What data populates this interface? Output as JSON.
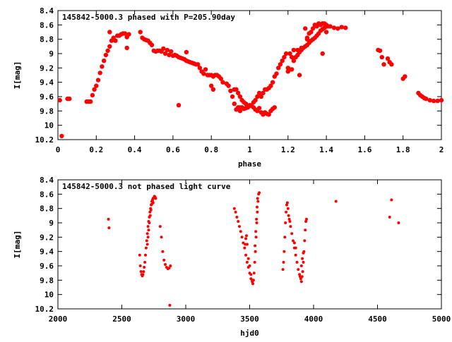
{
  "colors": {
    "marker": "#ff0000",
    "axis": "#000000",
    "background": "#ffffff"
  },
  "chart_data": [
    {
      "type": "scatter",
      "title": "145842-5000.3 phased with P=205.90day",
      "xlabel": "phase",
      "ylabel": "I[mag]",
      "xlim": [
        0,
        2
      ],
      "ylim": [
        10.2,
        8.4
      ],
      "y_inverted": true,
      "grid": false,
      "legend": "none",
      "marker": "filled-circle",
      "xticks": [
        "0",
        "0.2",
        "0.4",
        "0.6",
        "0.8",
        "1",
        "1.2",
        "1.4",
        "1.6",
        "1.8",
        "2"
      ],
      "yticks": [
        "8.4",
        "8.6",
        "8.8",
        "9",
        "9.2",
        "9.4",
        "9.6",
        "9.8",
        "10",
        "10.2"
      ],
      "points": [
        [
          0.01,
          9.65
        ],
        [
          0.02,
          10.15
        ],
        [
          0.05,
          9.63
        ],
        [
          0.06,
          9.63
        ],
        [
          0.15,
          9.67
        ],
        [
          0.16,
          9.67
        ],
        [
          0.17,
          9.67
        ],
        [
          0.18,
          9.58
        ],
        [
          0.19,
          9.5
        ],
        [
          0.2,
          9.45
        ],
        [
          0.21,
          9.37
        ],
        [
          0.22,
          9.27
        ],
        [
          0.23,
          9.18
        ],
        [
          0.24,
          9.1
        ],
        [
          0.25,
          9.02
        ],
        [
          0.26,
          8.96
        ],
        [
          0.27,
          8.9
        ],
        [
          0.28,
          8.82
        ],
        [
          0.29,
          8.78
        ],
        [
          0.3,
          8.82
        ],
        [
          0.31,
          8.75
        ],
        [
          0.32,
          8.75
        ],
        [
          0.33,
          8.73
        ],
        [
          0.34,
          8.72
        ],
        [
          0.35,
          8.72
        ],
        [
          0.36,
          8.77
        ],
        [
          0.37,
          8.73
        ],
        [
          0.36,
          8.92
        ],
        [
          0.27,
          8.7
        ],
        [
          0.43,
          8.7
        ],
        [
          0.44,
          8.78
        ],
        [
          0.45,
          8.8
        ],
        [
          0.46,
          8.81
        ],
        [
          0.47,
          8.82
        ],
        [
          0.48,
          8.85
        ],
        [
          0.49,
          8.88
        ],
        [
          0.5,
          8.96
        ],
        [
          0.51,
          8.97
        ],
        [
          0.52,
          8.96
        ],
        [
          0.53,
          8.96
        ],
        [
          0.54,
          8.97
        ],
        [
          0.55,
          8.93
        ],
        [
          0.56,
          9.0
        ],
        [
          0.57,
          8.95
        ],
        [
          0.58,
          9.02
        ],
        [
          0.59,
          8.97
        ],
        [
          0.6,
          9.03
        ],
        [
          0.61,
          9.02
        ],
        [
          0.62,
          9.03
        ],
        [
          0.63,
          9.05
        ],
        [
          0.64,
          9.06
        ],
        [
          0.65,
          9.07
        ],
        [
          0.66,
          9.08
        ],
        [
          0.67,
          9.1
        ],
        [
          0.68,
          9.11
        ],
        [
          0.69,
          9.12
        ],
        [
          0.7,
          9.13
        ],
        [
          0.71,
          9.14
        ],
        [
          0.72,
          9.15
        ],
        [
          0.73,
          9.15
        ],
        [
          0.63,
          9.72
        ],
        [
          0.67,
          8.98
        ],
        [
          0.74,
          9.2
        ],
        [
          0.75,
          9.25
        ],
        [
          0.76,
          9.28
        ],
        [
          0.77,
          9.22
        ],
        [
          0.78,
          9.3
        ],
        [
          0.79,
          9.3
        ],
        [
          0.8,
          9.3
        ],
        [
          0.81,
          9.32
        ],
        [
          0.82,
          9.3
        ],
        [
          0.83,
          9.3
        ],
        [
          0.84,
          9.32
        ],
        [
          0.85,
          9.35
        ],
        [
          0.86,
          9.4
        ],
        [
          0.8,
          9.45
        ],
        [
          0.81,
          9.5
        ],
        [
          0.88,
          9.42
        ],
        [
          0.89,
          9.45
        ],
        [
          0.9,
          9.52
        ],
        [
          0.91,
          9.6
        ],
        [
          0.92,
          9.5
        ],
        [
          0.93,
          9.5
        ],
        [
          0.94,
          9.55
        ],
        [
          0.95,
          9.6
        ],
        [
          0.96,
          9.65
        ],
        [
          0.97,
          9.68
        ],
        [
          0.98,
          9.7
        ],
        [
          0.99,
          9.75
        ],
        [
          1.0,
          9.73
        ],
        [
          1.01,
          9.72
        ],
        [
          1.02,
          9.68
        ],
        [
          1.03,
          9.65
        ],
        [
          1.04,
          9.6
        ],
        [
          1.05,
          9.55
        ],
        [
          1.06,
          9.6
        ],
        [
          1.07,
          9.55
        ],
        [
          1.08,
          9.5
        ],
        [
          1.09,
          9.5
        ],
        [
          1.1,
          9.48
        ],
        [
          1.11,
          9.45
        ],
        [
          1.12,
          9.4
        ],
        [
          1.13,
          9.32
        ],
        [
          1.14,
          9.28
        ],
        [
          1.15,
          9.2
        ],
        [
          1.16,
          9.15
        ],
        [
          1.17,
          9.1
        ],
        [
          1.18,
          9.05
        ],
        [
          1.19,
          9.0
        ],
        [
          0.94,
          9.75
        ],
        [
          0.95,
          9.75
        ],
        [
          0.96,
          9.75
        ],
        [
          0.97,
          9.77
        ],
        [
          0.98,
          9.76
        ],
        [
          0.99,
          9.74
        ],
        [
          1.0,
          9.72
        ],
        [
          0.93,
          9.78
        ],
        [
          0.92,
          9.7
        ],
        [
          0.95,
          9.8
        ],
        [
          1.02,
          9.75
        ],
        [
          1.03,
          9.78
        ],
        [
          1.04,
          9.8
        ],
        [
          1.05,
          9.76
        ],
        [
          1.06,
          9.82
        ],
        [
          1.07,
          9.85
        ],
        [
          1.08,
          9.82
        ],
        [
          1.09,
          9.84
        ],
        [
          1.1,
          9.85
        ],
        [
          1.11,
          9.8
        ],
        [
          1.12,
          9.77
        ],
        [
          1.13,
          9.75
        ],
        [
          1.2,
          9.25
        ],
        [
          1.21,
          9.22
        ],
        [
          1.22,
          9.22
        ],
        [
          1.23,
          9.1
        ],
        [
          1.24,
          9.05
        ],
        [
          1.25,
          9.02
        ],
        [
          1.26,
          8.98
        ],
        [
          1.27,
          8.95
        ],
        [
          1.28,
          8.92
        ],
        [
          1.29,
          8.9
        ],
        [
          1.3,
          8.88
        ],
        [
          1.31,
          8.85
        ],
        [
          1.32,
          8.82
        ],
        [
          1.33,
          8.8
        ],
        [
          1.34,
          8.78
        ],
        [
          1.35,
          8.75
        ],
        [
          1.36,
          8.72
        ],
        [
          1.37,
          8.68
        ],
        [
          1.38,
          8.66
        ],
        [
          1.39,
          8.64
        ],
        [
          1.4,
          8.62
        ],
        [
          1.41,
          8.62
        ],
        [
          1.2,
          9.2
        ],
        [
          1.21,
          9.0
        ],
        [
          1.22,
          9.05
        ],
        [
          1.23,
          8.95
        ],
        [
          1.25,
          8.95
        ],
        [
          1.26,
          9.3
        ],
        [
          1.27,
          8.92
        ],
        [
          1.3,
          8.78
        ],
        [
          1.31,
          8.72
        ],
        [
          1.32,
          8.7
        ],
        [
          1.33,
          8.65
        ],
        [
          1.34,
          8.6
        ],
        [
          1.35,
          8.62
        ],
        [
          1.36,
          8.58
        ],
        [
          1.37,
          8.6
        ],
        [
          1.38,
          8.58
        ],
        [
          1.39,
          8.58
        ],
        [
          1.4,
          8.6
        ],
        [
          1.42,
          8.62
        ],
        [
          1.44,
          8.64
        ],
        [
          1.46,
          8.65
        ],
        [
          1.48,
          8.63
        ],
        [
          1.5,
          8.64
        ],
        [
          1.38,
          9.0
        ],
        [
          1.4,
          8.7
        ],
        [
          1.29,
          8.65
        ],
        [
          1.3,
          8.8
        ],
        [
          1.67,
          8.95
        ],
        [
          1.68,
          8.96
        ],
        [
          1.69,
          9.05
        ],
        [
          1.7,
          9.15
        ],
        [
          1.72,
          9.07
        ],
        [
          1.73,
          9.12
        ],
        [
          1.74,
          9.15
        ],
        [
          1.8,
          9.35
        ],
        [
          1.81,
          9.32
        ],
        [
          1.88,
          9.55
        ],
        [
          1.89,
          9.58
        ],
        [
          1.9,
          9.6
        ],
        [
          1.92,
          9.63
        ],
        [
          1.94,
          9.65
        ],
        [
          1.96,
          9.66
        ],
        [
          1.98,
          9.66
        ],
        [
          2.0,
          9.65
        ],
        [
          1.91,
          9.62
        ]
      ]
    },
    {
      "type": "scatter",
      "title": "145842-5000.3 not phased light curve",
      "xlabel": "hjd0",
      "ylabel": "I[mag]",
      "xlim": [
        2000,
        5000
      ],
      "ylim": [
        10.2,
        8.4
      ],
      "y_inverted": true,
      "grid": false,
      "legend": "none",
      "marker": "small-dot",
      "xticks": [
        "2000",
        "2500",
        "3000",
        "3500",
        "4000",
        "4500",
        "5000"
      ],
      "yticks": [
        "8.4",
        "8.6",
        "8.8",
        "9",
        "9.2",
        "9.4",
        "9.6",
        "9.8",
        "10",
        "10.2"
      ],
      "points": [
        [
          2395,
          8.95
        ],
        [
          2400,
          9.07
        ],
        [
          2640,
          9.45
        ],
        [
          2645,
          9.6
        ],
        [
          2650,
          9.68
        ],
        [
          2655,
          9.72
        ],
        [
          2660,
          9.74
        ],
        [
          2665,
          9.72
        ],
        [
          2670,
          9.68
        ],
        [
          2675,
          9.62
        ],
        [
          2680,
          9.55
        ],
        [
          2685,
          9.45
        ],
        [
          2690,
          9.35
        ],
        [
          2695,
          9.25
        ],
        [
          2700,
          9.15
        ],
        [
          2705,
          9.05
        ],
        [
          2710,
          8.98
        ],
        [
          2715,
          8.92
        ],
        [
          2720,
          8.85
        ],
        [
          2725,
          8.8
        ],
        [
          2730,
          8.75
        ],
        [
          2735,
          8.7
        ],
        [
          2740,
          8.68
        ],
        [
          2745,
          8.66
        ],
        [
          2750,
          8.65
        ],
        [
          2755,
          8.63
        ],
        [
          2760,
          8.64
        ],
        [
          2765,
          8.66
        ],
        [
          2700,
          9.3
        ],
        [
          2705,
          9.2
        ],
        [
          2710,
          9.1
        ],
        [
          2715,
          9.0
        ],
        [
          2722,
          8.9
        ],
        [
          2728,
          8.82
        ],
        [
          2734,
          8.74
        ],
        [
          2740,
          8.7
        ],
        [
          2745,
          8.72
        ],
        [
          2800,
          9.05
        ],
        [
          2810,
          9.2
        ],
        [
          2820,
          9.4
        ],
        [
          2830,
          9.52
        ],
        [
          2840,
          9.58
        ],
        [
          2850,
          9.62
        ],
        [
          2860,
          9.64
        ],
        [
          2870,
          9.63
        ],
        [
          2880,
          9.6
        ],
        [
          2875,
          10.15
        ],
        [
          3380,
          8.8
        ],
        [
          3390,
          8.85
        ],
        [
          3400,
          8.92
        ],
        [
          3410,
          8.98
        ],
        [
          3420,
          9.05
        ],
        [
          3430,
          9.12
        ],
        [
          3440,
          9.2
        ],
        [
          3450,
          9.28
        ],
        [
          3460,
          9.35
        ],
        [
          3470,
          9.45
        ],
        [
          3480,
          9.55
        ],
        [
          3490,
          9.62
        ],
        [
          3500,
          9.7
        ],
        [
          3510,
          9.78
        ],
        [
          3520,
          9.82
        ],
        [
          3525,
          9.85
        ],
        [
          3530,
          9.8
        ],
        [
          3535,
          9.7
        ],
        [
          3540,
          9.55
        ],
        [
          3545,
          9.4
        ],
        [
          3550,
          9.2
        ],
        [
          3555,
          9.0
        ],
        [
          3560,
          8.85
        ],
        [
          3565,
          8.7
        ],
        [
          3570,
          8.6
        ],
        [
          3575,
          8.58
        ],
        [
          3465,
          9.3
        ],
        [
          3470,
          9.22
        ],
        [
          3475,
          9.18
        ],
        [
          3480,
          9.3
        ],
        [
          3490,
          9.5
        ],
        [
          3500,
          9.6
        ],
        [
          3510,
          9.72
        ],
        [
          3520,
          9.8
        ],
        [
          3542,
          9.32
        ],
        [
          3548,
          9.12
        ],
        [
          3553,
          8.95
        ],
        [
          3558,
          8.78
        ],
        [
          3562,
          8.66
        ],
        [
          3760,
          9.65
        ],
        [
          3765,
          9.55
        ],
        [
          3770,
          9.4
        ],
        [
          3775,
          9.2
        ],
        [
          3780,
          9.0
        ],
        [
          3785,
          8.85
        ],
        [
          3790,
          8.75
        ],
        [
          3795,
          8.72
        ],
        [
          3800,
          8.8
        ],
        [
          3805,
          8.9
        ],
        [
          3810,
          8.95
        ],
        [
          3815,
          8.98
        ],
        [
          3820,
          9.05
        ],
        [
          3830,
          9.15
        ],
        [
          3840,
          9.25
        ],
        [
          3850,
          9.35
        ],
        [
          3860,
          9.45
        ],
        [
          3870,
          9.55
        ],
        [
          3880,
          9.65
        ],
        [
          3890,
          9.72
        ],
        [
          3900,
          9.78
        ],
        [
          3905,
          9.82
        ],
        [
          3910,
          9.75
        ],
        [
          3915,
          9.68
        ],
        [
          3920,
          9.55
        ],
        [
          3925,
          9.4
        ],
        [
          3930,
          9.25
        ],
        [
          3935,
          9.1
        ],
        [
          3940,
          8.98
        ],
        [
          3945,
          8.95
        ],
        [
          3850,
          9.28
        ],
        [
          3860,
          9.35
        ],
        [
          3895,
          9.75
        ],
        [
          3905,
          9.6
        ],
        [
          3912,
          9.5
        ],
        [
          3920,
          9.42
        ],
        [
          4175,
          8.7
        ],
        [
          4595,
          8.92
        ],
        [
          4610,
          8.68
        ],
        [
          4665,
          9.0
        ]
      ]
    }
  ]
}
